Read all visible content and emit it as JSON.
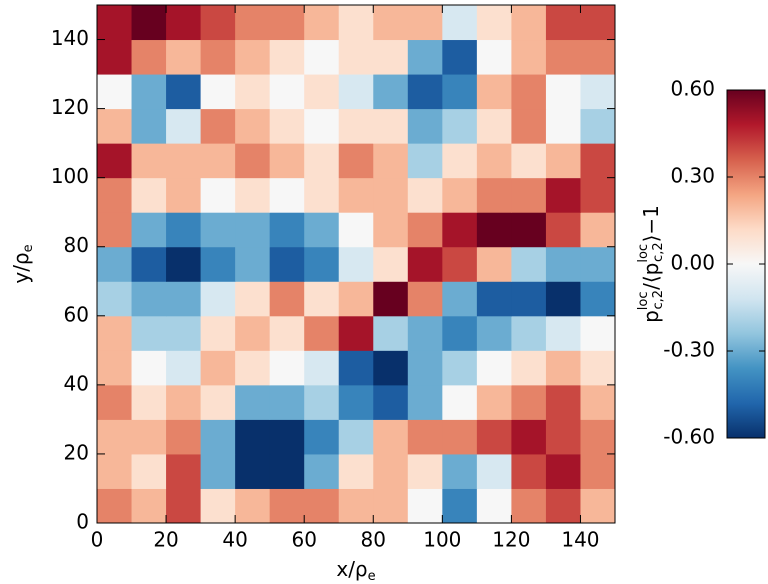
{
  "chart_data": {
    "type": "heatmap",
    "xlabel": [
      "x/ρ",
      "e"
    ],
    "ylabel": [
      "y/ρ",
      "e"
    ],
    "colorbar_label": [
      "p",
      "loc",
      "c,2",
      "/⟨p",
      "loc",
      "c,2",
      "⟩−1"
    ],
    "xbins": [
      0,
      10,
      20,
      30,
      40,
      50,
      60,
      70,
      80,
      90,
      100,
      110,
      120,
      130,
      140,
      150
    ],
    "ybins": [
      0,
      10,
      20,
      30,
      40,
      50,
      60,
      70,
      80,
      90,
      100,
      110,
      120,
      130,
      140,
      150
    ],
    "values": [
      [
        0.3,
        0.2,
        0.4,
        0.1,
        0.2,
        0.3,
        0.3,
        0.2,
        0.2,
        0.0,
        -0.4,
        0.0,
        0.3,
        0.4,
        0.2
      ],
      [
        0.2,
        0.1,
        0.4,
        -0.3,
        -0.6,
        -0.6,
        -0.3,
        0.1,
        0.2,
        0.1,
        -0.3,
        -0.1,
        0.4,
        0.5,
        0.3
      ],
      [
        0.2,
        0.2,
        0.3,
        -0.3,
        -0.6,
        -0.6,
        -0.4,
        -0.2,
        0.2,
        0.3,
        0.3,
        0.4,
        0.5,
        0.4,
        0.3
      ],
      [
        0.3,
        0.1,
        0.2,
        0.1,
        -0.3,
        -0.3,
        -0.2,
        -0.4,
        -0.5,
        -0.3,
        0.0,
        0.2,
        0.3,
        0.4,
        0.2
      ],
      [
        0.2,
        0.0,
        -0.1,
        0.2,
        0.1,
        0.0,
        -0.1,
        -0.5,
        -0.6,
        -0.3,
        -0.2,
        0.0,
        0.1,
        0.2,
        0.1
      ],
      [
        0.2,
        -0.2,
        -0.2,
        0.1,
        0.2,
        0.1,
        0.3,
        0.5,
        -0.2,
        -0.3,
        -0.4,
        -0.3,
        -0.2,
        -0.1,
        0.0
      ],
      [
        -0.2,
        -0.3,
        -0.3,
        -0.1,
        0.1,
        0.3,
        0.1,
        0.2,
        0.6,
        0.3,
        -0.3,
        -0.5,
        -0.5,
        -0.6,
        -0.4
      ],
      [
        -0.3,
        -0.5,
        -0.6,
        -0.4,
        -0.3,
        -0.5,
        -0.4,
        -0.1,
        0.1,
        0.5,
        0.4,
        0.2,
        -0.2,
        -0.3,
        -0.3
      ],
      [
        0.3,
        -0.3,
        -0.4,
        -0.3,
        -0.3,
        -0.4,
        -0.3,
        0.0,
        0.2,
        0.3,
        0.5,
        0.6,
        0.6,
        0.4,
        0.2
      ],
      [
        0.3,
        0.1,
        0.2,
        0.0,
        0.1,
        0.0,
        0.1,
        0.2,
        0.2,
        0.1,
        0.2,
        0.3,
        0.3,
        0.5,
        0.4
      ],
      [
        0.5,
        0.2,
        0.2,
        0.2,
        0.3,
        0.2,
        0.1,
        0.3,
        0.2,
        -0.2,
        0.1,
        0.2,
        0.1,
        0.2,
        0.4
      ],
      [
        0.2,
        -0.3,
        -0.1,
        0.3,
        0.2,
        0.1,
        0.0,
        0.1,
        0.1,
        -0.3,
        -0.2,
        0.1,
        0.3,
        0.0,
        -0.2
      ],
      [
        0.0,
        -0.3,
        -0.5,
        0.0,
        0.1,
        0.0,
        0.1,
        -0.1,
        -0.3,
        -0.5,
        -0.4,
        0.2,
        0.3,
        0.0,
        -0.1
      ],
      [
        0.5,
        0.3,
        0.2,
        0.3,
        0.2,
        0.1,
        0.0,
        0.1,
        0.1,
        -0.3,
        -0.5,
        0.0,
        0.2,
        0.3,
        0.3
      ],
      [
        0.5,
        0.6,
        0.5,
        0.4,
        0.3,
        0.3,
        0.2,
        0.1,
        0.2,
        0.2,
        -0.1,
        0.1,
        0.2,
        0.4,
        0.4
      ]
    ],
    "xlim": [
      0,
      150
    ],
    "ylim": [
      0,
      150
    ],
    "xticks": [
      0,
      20,
      40,
      60,
      80,
      100,
      120,
      140
    ],
    "yticks": [
      0,
      20,
      40,
      60,
      80,
      100,
      120,
      140
    ],
    "clim": [
      -0.6,
      0.6
    ],
    "cticks": [
      {
        "value": 0.6,
        "label": "0.60"
      },
      {
        "value": 0.3,
        "label": "0.30"
      },
      {
        "value": 0,
        "label": "0.00"
      },
      {
        "value": -0.3,
        "label": "-0.30"
      },
      {
        "value": -0.6,
        "label": "-0.60"
      }
    ],
    "colormap": [
      "#08306b",
      "#2166ac",
      "#4393c3",
      "#92c5de",
      "#d1e5f0",
      "#f7f7f7",
      "#fddbc7",
      "#f4a582",
      "#d6604d",
      "#b2182b",
      "#67001f"
    ]
  }
}
